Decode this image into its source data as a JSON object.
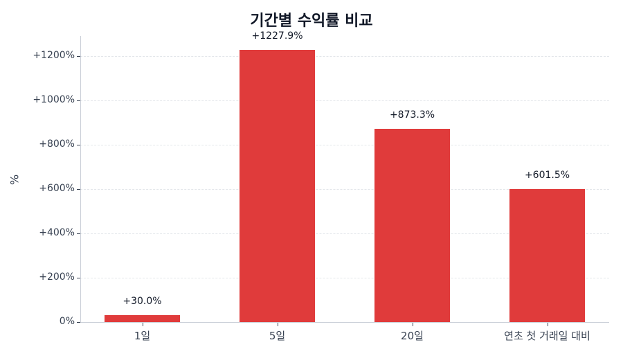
{
  "chart_data": {
    "type": "bar",
    "title": "기간별 수익률 비교",
    "xlabel": "",
    "ylabel": "%",
    "categories": [
      "1일",
      "5일",
      "20일",
      "연초 첫 거래일 대비"
    ],
    "values": [
      30.0,
      1227.9,
      873.3,
      601.5
    ],
    "value_labels": [
      "+30.0%",
      "+1227.9%",
      "+873.3%",
      "+601.5%"
    ],
    "ylim": [
      0,
      1290
    ],
    "yticks": [
      0,
      200,
      400,
      600,
      800,
      1000,
      1200
    ],
    "ytick_labels": [
      "0%",
      "+200%",
      "+400%",
      "+600%",
      "+800%",
      "+1000%",
      "+1200%"
    ],
    "grid": true,
    "grid_style": "dashed horizontal",
    "legend": null,
    "bar_color": "#e03b3b"
  }
}
